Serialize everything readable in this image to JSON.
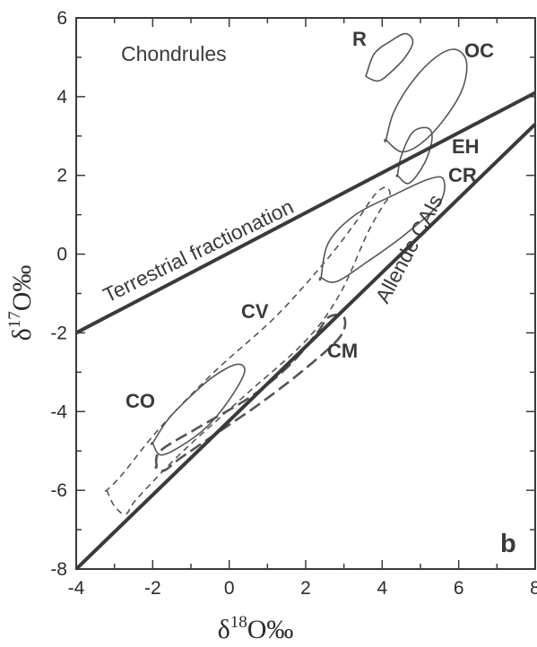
{
  "chart_data": {
    "type": "line",
    "panel_letter": "b",
    "xlabel": {
      "base": "δ",
      "sup": "18",
      "rest": "O‰"
    },
    "ylabel": {
      "base": "δ",
      "sup": "17",
      "rest": "O‰"
    },
    "xlim": [
      -4,
      8
    ],
    "ylim": [
      -8,
      6
    ],
    "xticks": [
      -4,
      -2,
      0,
      2,
      4,
      6,
      8
    ],
    "yticks": [
      -8,
      -6,
      -4,
      -2,
      0,
      2,
      4,
      6
    ],
    "xtick_labels": [
      "-4",
      "-2",
      "0",
      "2",
      "4",
      "6",
      "8"
    ],
    "ytick_labels": [
      "-8",
      "-6",
      "-4",
      "-2",
      "0",
      "2",
      "4",
      "6"
    ],
    "annotations": [
      "Chondrules"
    ],
    "lines": [
      {
        "name": "Terrestrial fractionation",
        "x": [
          -4,
          8
        ],
        "y": [
          -2.0,
          4.1
        ]
      },
      {
        "name": "Allende CAIs",
        "x": [
          -4,
          8
        ],
        "y": [
          -8.0,
          3.3
        ]
      }
    ],
    "regions": [
      {
        "name": "R",
        "style": "solid",
        "points": [
          [
            3.6,
            4.6
          ],
          [
            3.8,
            5.1
          ],
          [
            4.2,
            5.4
          ],
          [
            4.6,
            5.6
          ],
          [
            4.8,
            5.4
          ],
          [
            4.6,
            5.0
          ],
          [
            4.2,
            4.6
          ],
          [
            3.9,
            4.4
          ],
          [
            3.6,
            4.5
          ]
        ]
      },
      {
        "name": "OC",
        "style": "solid",
        "points": [
          [
            4.1,
            2.9
          ],
          [
            4.3,
            3.6
          ],
          [
            4.8,
            4.4
          ],
          [
            5.4,
            5.0
          ],
          [
            5.9,
            5.2
          ],
          [
            6.2,
            4.9
          ],
          [
            6.1,
            4.2
          ],
          [
            5.6,
            3.4
          ],
          [
            5.0,
            2.8
          ],
          [
            4.5,
            2.6
          ],
          [
            4.1,
            2.9
          ]
        ]
      },
      {
        "name": "EH",
        "style": "solid",
        "points": [
          [
            4.4,
            2.0
          ],
          [
            4.5,
            2.5
          ],
          [
            4.8,
            3.1
          ],
          [
            5.2,
            3.2
          ],
          [
            5.3,
            2.9
          ],
          [
            5.1,
            2.3
          ],
          [
            4.7,
            1.8
          ],
          [
            4.4,
            2.0
          ]
        ]
      },
      {
        "name": "CR",
        "style": "solid",
        "points": [
          [
            2.4,
            -0.6
          ],
          [
            2.6,
            0.3
          ],
          [
            3.3,
            1.0
          ],
          [
            4.3,
            1.5
          ],
          [
            5.2,
            1.9
          ],
          [
            5.6,
            1.9
          ],
          [
            5.5,
            1.3
          ],
          [
            4.6,
            0.5
          ],
          [
            3.6,
            -0.2
          ],
          [
            2.8,
            -0.7
          ],
          [
            2.4,
            -0.6
          ]
        ]
      },
      {
        "name": "CV",
        "style": "dashed",
        "points": [
          [
            -3.2,
            -6.0
          ],
          [
            -3.0,
            -6.4
          ],
          [
            -2.7,
            -6.6
          ],
          [
            -2.4,
            -6.2
          ],
          [
            -1.2,
            -5.0
          ],
          [
            0.4,
            -3.6
          ],
          [
            2.0,
            -2.2
          ],
          [
            2.9,
            -1.0
          ],
          [
            3.6,
            0.5
          ],
          [
            4.0,
            1.2
          ],
          [
            4.2,
            1.5
          ],
          [
            4.1,
            1.7
          ],
          [
            3.8,
            1.5
          ],
          [
            3.3,
            0.8
          ],
          [
            2.5,
            -0.2
          ],
          [
            1.2,
            -1.6
          ],
          [
            -0.4,
            -3.0
          ],
          [
            -1.8,
            -4.4
          ],
          [
            -2.8,
            -5.6
          ],
          [
            -3.2,
            -6.0
          ]
        ]
      },
      {
        "name": "CO",
        "style": "solid",
        "points": [
          [
            -2.0,
            -4.8
          ],
          [
            -1.6,
            -4.2
          ],
          [
            -1.0,
            -3.6
          ],
          [
            -0.4,
            -3.1
          ],
          [
            0.2,
            -2.8
          ],
          [
            0.4,
            -3.0
          ],
          [
            0.0,
            -3.7
          ],
          [
            -0.6,
            -4.4
          ],
          [
            -1.3,
            -4.9
          ],
          [
            -1.8,
            -5.1
          ],
          [
            -2.0,
            -4.8
          ]
        ]
      },
      {
        "name": "CM",
        "style": "dashed",
        "points": [
          [
            -1.9,
            -5.4
          ],
          [
            -1.8,
            -5.0
          ],
          [
            -0.8,
            -4.4
          ],
          [
            0.6,
            -3.6
          ],
          [
            1.6,
            -2.8
          ],
          [
            2.3,
            -2.0
          ],
          [
            2.6,
            -1.6
          ],
          [
            3.0,
            -1.6
          ],
          [
            2.9,
            -2.1
          ],
          [
            2.0,
            -2.9
          ],
          [
            0.8,
            -3.8
          ],
          [
            -0.4,
            -4.6
          ],
          [
            -1.3,
            -5.2
          ],
          [
            -1.7,
            -5.5
          ],
          [
            -1.9,
            -5.4
          ]
        ]
      }
    ]
  }
}
